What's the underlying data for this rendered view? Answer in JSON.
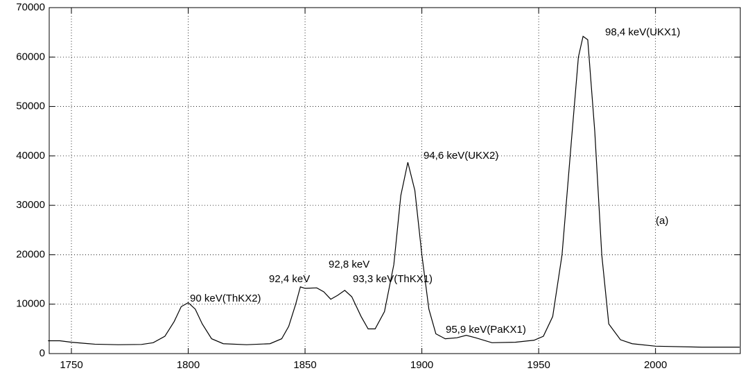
{
  "chart_data": {
    "type": "line",
    "x": [
      1740,
      1745,
      1750,
      1760,
      1770,
      1780,
      1785,
      1790,
      1794,
      1797,
      1800,
      1803,
      1806,
      1810,
      1815,
      1825,
      1835,
      1840,
      1843,
      1846,
      1848,
      1850,
      1855,
      1858,
      1861,
      1864,
      1867,
      1870,
      1874,
      1877,
      1880,
      1884,
      1888,
      1891,
      1894,
      1897,
      1900,
      1903,
      1906,
      1910,
      1915,
      1919,
      1923,
      1930,
      1940,
      1948,
      1952,
      1956,
      1960,
      1964,
      1967,
      1969,
      1971,
      1974,
      1977,
      1980,
      1985,
      1990,
      2000,
      2020,
      2036
    ],
    "series": [
      {
        "color": "#000000",
        "values": [
          2600,
          2600,
          2300,
          1900,
          1800,
          1850,
          2200,
          3500,
          6500,
          9500,
          10300,
          9000,
          6000,
          3000,
          2000,
          1800,
          2000,
          3000,
          5500,
          10000,
          13500,
          13200,
          13300,
          12500,
          11000,
          11800,
          12800,
          11500,
          7500,
          5000,
          5000,
          8500,
          18000,
          32000,
          38700,
          33000,
          20000,
          9000,
          4000,
          3000,
          3200,
          3700,
          3200,
          2200,
          2300,
          2700,
          3500,
          7500,
          20000,
          43000,
          60000,
          64200,
          63500,
          45000,
          20000,
          6000,
          2800,
          2000,
          1500,
          1300,
          1300
        ]
      }
    ],
    "xlim": [
      1740.5,
      2036.3
    ],
    "ylim": [
      0,
      70000
    ],
    "xticks": [
      1750,
      1800,
      1850,
      1900,
      1950,
      2000
    ],
    "yticks": [
      0,
      10000,
      20000,
      30000,
      40000,
      50000,
      60000,
      70000
    ],
    "grid": true,
    "annotations": [
      "98,4 keV(UKX1)",
      "94,6 keV(UKX2)",
      "(a)",
      "92,8 keV",
      "92,4 keV",
      "93,3 keV(ThKX1)",
      "90 keV(ThKX2)",
      "95,9 keV(PaKX1)"
    ]
  }
}
